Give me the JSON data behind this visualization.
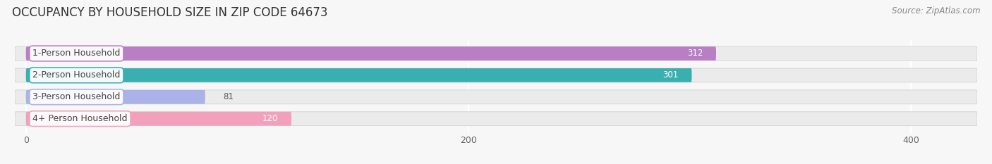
{
  "title": "OCCUPANCY BY HOUSEHOLD SIZE IN ZIP CODE 64673",
  "source": "Source: ZipAtlas.com",
  "categories": [
    "1-Person Household",
    "2-Person Household",
    "3-Person Household",
    "4+ Person Household"
  ],
  "values": [
    312,
    301,
    81,
    120
  ],
  "bar_colors": [
    "#b87fc4",
    "#3aafb0",
    "#aab2e8",
    "#f2a0bc"
  ],
  "label_colors": [
    "white",
    "white",
    "#555555",
    "#555555"
  ],
  "xlim": [
    -5,
    430
  ],
  "xticks": [
    0,
    200,
    400
  ],
  "background_color": "#f7f7f7",
  "bar_bg_color": "#ebebeb",
  "title_fontsize": 12,
  "source_fontsize": 8.5,
  "label_fontsize": 9,
  "value_fontsize": 8.5,
  "tick_fontsize": 9
}
